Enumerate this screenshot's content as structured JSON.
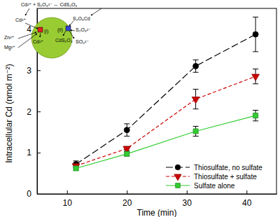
{
  "chart_data": {
    "type": "line",
    "x_label": "Time (min)",
    "y_label": "Intracellular Cd (nmol m⁻²)",
    "x": [
      11.5,
      20,
      31.5,
      41.5
    ],
    "xlim": [
      5,
      45
    ],
    "xticks": [
      10,
      20,
      30,
      40
    ],
    "ylim": [
      0,
      4.5
    ],
    "yticks": [
      0,
      1,
      2,
      3,
      4
    ],
    "legend": "lower right",
    "series": [
      {
        "name": "Thiosulfate, no sulfate",
        "color": "#000000",
        "marker": "circle",
        "line_style": "long-dash",
        "values": [
          0.72,
          1.55,
          3.1,
          3.87
        ],
        "errors": [
          0.08,
          0.15,
          0.15,
          0.42
        ]
      },
      {
        "name": "Thiosulfate + sulfate",
        "color": "#cc0000",
        "marker": "triangle-down",
        "line_style": "dash",
        "values": [
          0.68,
          1.1,
          2.3,
          2.85
        ],
        "errors": [
          0.05,
          0.05,
          0.24,
          0.18
        ]
      },
      {
        "name": "Sulfate alone",
        "color": "#33cc33",
        "marker": "square",
        "line_style": "solid",
        "values": [
          0.62,
          0.97,
          1.52,
          1.9
        ],
        "errors": [
          0.05,
          0.05,
          0.12,
          0.13
        ]
      }
    ],
    "annotations": [
      "Cd²⁺ + S₂O₃²⁻ ↔ CdS₂O₃",
      "Cd²⁺",
      "Zn²⁺",
      "Mg²⁺",
      "(i)",
      "Cd²⁺",
      "(ii)",
      "CdS₂O₃",
      "S₂O₃Cd",
      "S₂O₃²⁻",
      "SO₄²⁻"
    ]
  }
}
